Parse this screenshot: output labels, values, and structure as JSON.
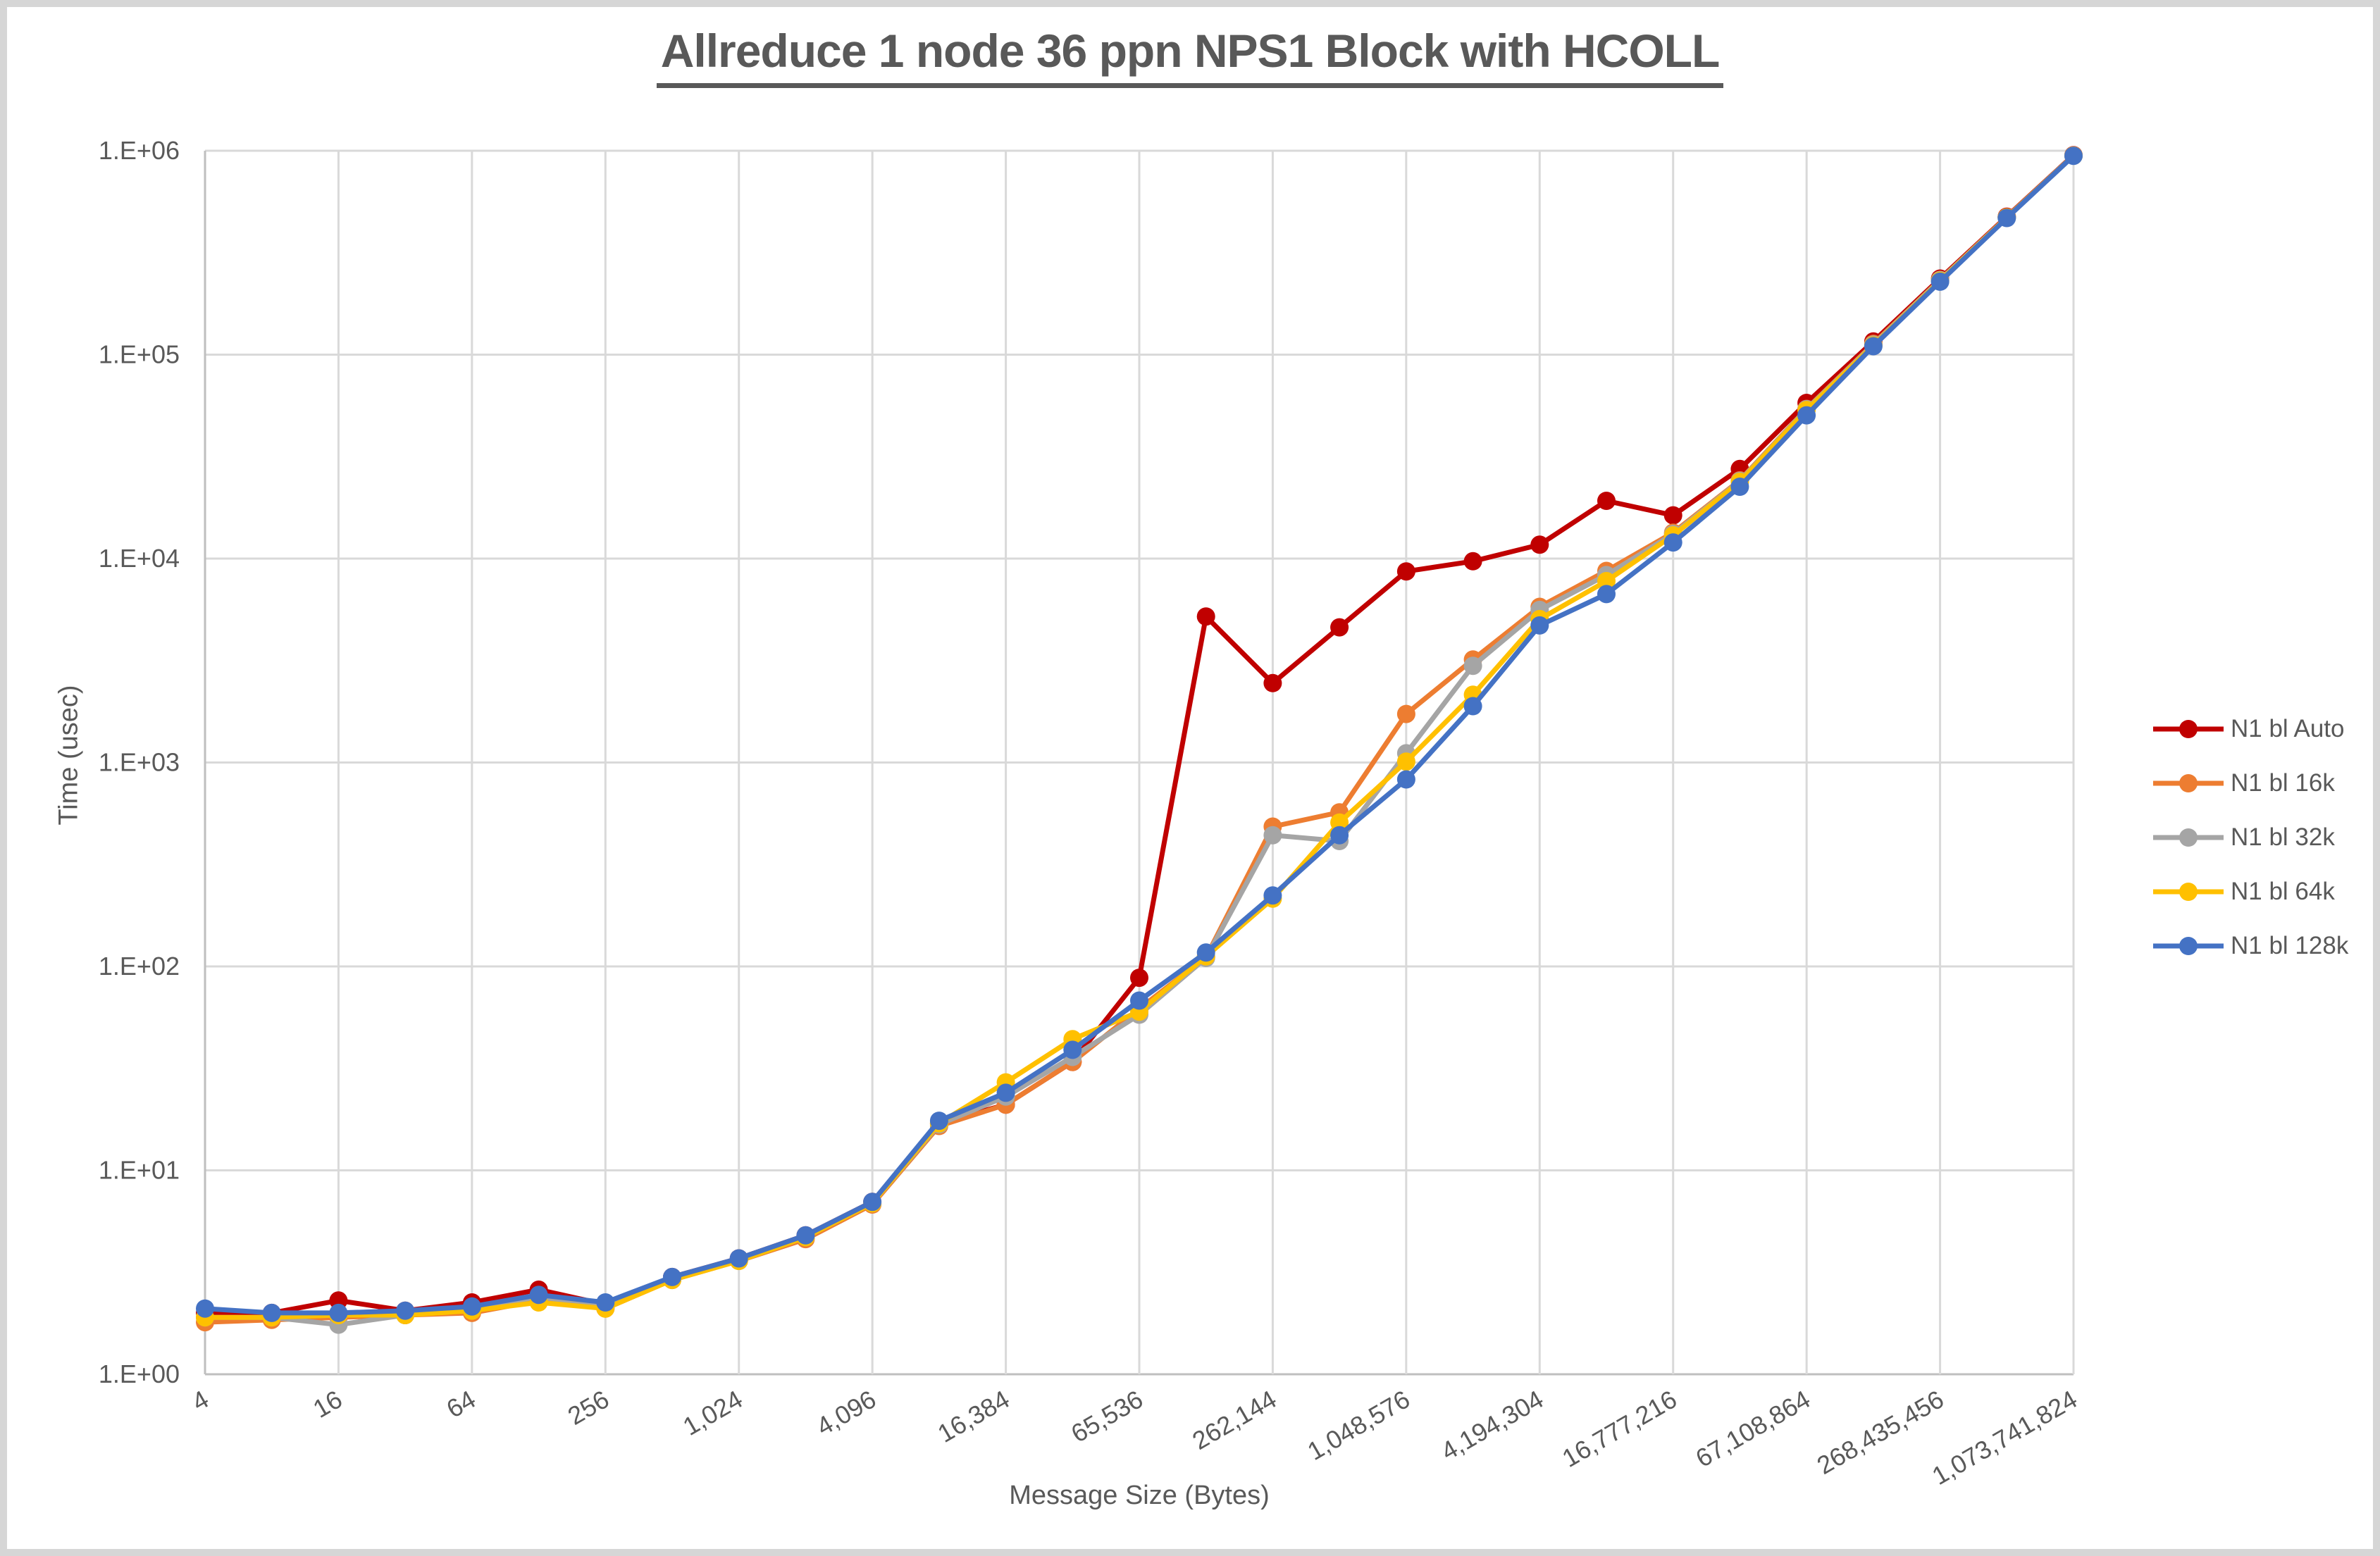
{
  "window": {
    "background_color": "#ffffff",
    "frame_color": "#d6d6d6"
  },
  "chart_data": {
    "type": "line",
    "title": "Allreduce 1 node 36 ppn NPS1 Block with HCOLL",
    "xlabel": "Message Size (Bytes)",
    "ylabel": "Time (usec)",
    "x_scale": "log2",
    "y_scale": "log10",
    "xlim": [
      4,
      1073741824
    ],
    "ylim": [
      1,
      1000000
    ],
    "grid": true,
    "legend_position": "right",
    "y_tick_labels": [
      "1.E+00",
      "1.E+01",
      "1.E+02",
      "1.E+03",
      "1.E+04",
      "1.E+05",
      "1.E+06"
    ],
    "x_tick_labels": [
      "4",
      "16",
      "64",
      "256",
      "1,024",
      "4,096",
      "16,384",
      "65,536",
      "262,144",
      "1,048,576",
      "4,194,304",
      "16,777,216",
      "67,108,864",
      "268,435,456",
      "1,073,741,824"
    ],
    "x": [
      4,
      8,
      16,
      32,
      64,
      128,
      256,
      512,
      1024,
      2048,
      4096,
      8192,
      16384,
      32768,
      65536,
      131072,
      262144,
      524288,
      1048576,
      2097152,
      4194304,
      8388608,
      16777216,
      33554432,
      67108864,
      134217728,
      268435456,
      536870912,
      1073741824
    ],
    "series": [
      {
        "name": "N1 bl Auto",
        "color": "#C00000",
        "values": [
          2.0,
          2.0,
          2.3,
          2.05,
          2.25,
          2.6,
          2.2,
          3.0,
          3.7,
          4.8,
          7.0,
          17,
          21,
          34,
          88,
          5200,
          2450,
          4600,
          8650,
          9700,
          11700,
          19200,
          16300,
          27500,
          58000,
          116000,
          236000,
          475000,
          952000
        ]
      },
      {
        "name": "N1 bl 16k",
        "color": "#ED7D31",
        "values": [
          1.8,
          1.85,
          1.9,
          1.95,
          2.0,
          2.3,
          2.1,
          2.9,
          3.6,
          4.6,
          6.8,
          16.5,
          21,
          34,
          62,
          111,
          485,
          570,
          1730,
          3200,
          5800,
          8700,
          13400,
          24200,
          54200,
          113000,
          233000,
          472000,
          948000
        ]
      },
      {
        "name": "N1 bl 32k",
        "color": "#A5A5A5",
        "values": [
          1.9,
          1.9,
          1.75,
          1.95,
          2.1,
          2.4,
          2.15,
          2.95,
          3.6,
          4.7,
          6.9,
          16.8,
          23,
          36,
          58,
          110,
          440,
          412,
          1110,
          2980,
          5600,
          8300,
          13200,
          24000,
          54000,
          112000,
          232000,
          471000,
          947000
        ]
      },
      {
        "name": "N1 bl 64k",
        "color": "#FFC000",
        "values": [
          1.9,
          1.9,
          1.95,
          1.95,
          2.05,
          2.25,
          2.1,
          2.9,
          3.6,
          4.7,
          6.9,
          17,
          27,
          44,
          60,
          112,
          215,
          508,
          1010,
          2150,
          5050,
          7750,
          13000,
          23800,
          53500,
          111000,
          230000,
          470000,
          946000
        ]
      },
      {
        "name": "N1 bl 128k",
        "color": "#4472C4",
        "values": [
          2.1,
          2.0,
          2.0,
          2.05,
          2.15,
          2.45,
          2.25,
          3.0,
          3.7,
          4.8,
          7.0,
          17.5,
          24,
          39,
          68,
          117,
          223,
          440,
          826,
          1890,
          4700,
          6700,
          12000,
          22500,
          50400,
          110000,
          228000,
          468000,
          944000
        ]
      }
    ],
    "style": {
      "gridline_color": "#D9D9D9",
      "axis_line_color": "#BFBFBF",
      "text_color": "#595959",
      "line_width": 7,
      "marker_radius": 13
    }
  }
}
